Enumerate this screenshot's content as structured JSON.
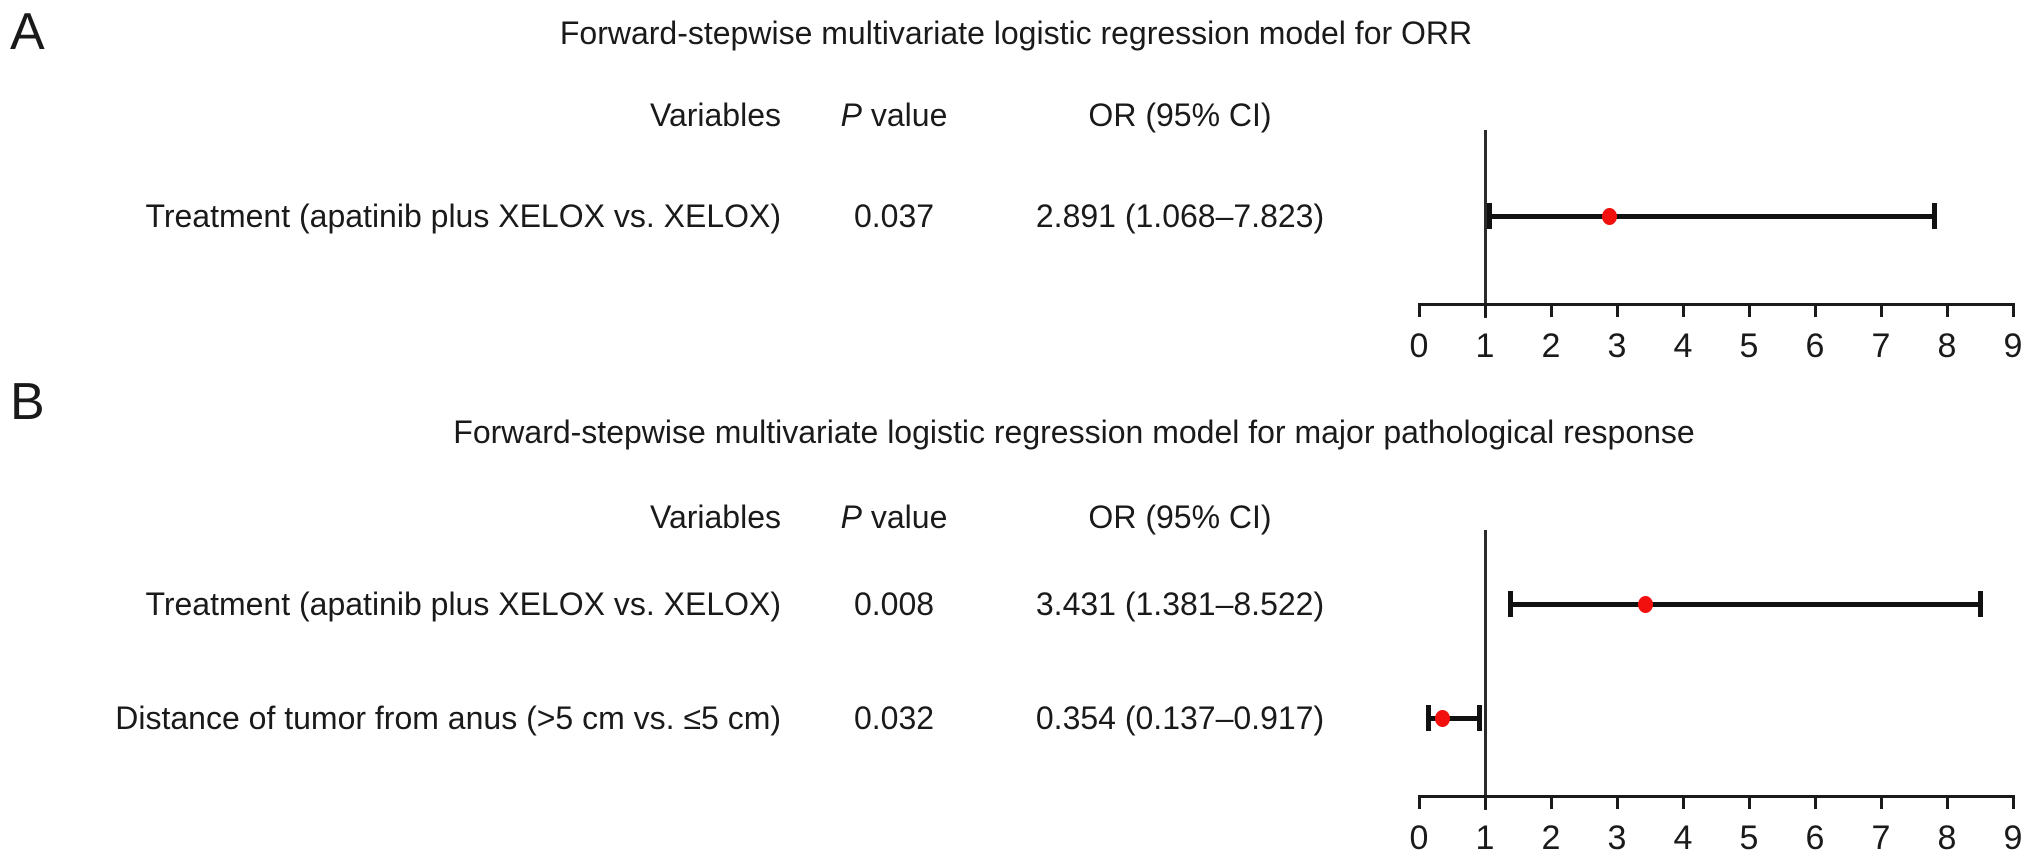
{
  "figure_labels": {
    "panel_a": "A",
    "panel_b": "B"
  },
  "columns": {
    "variables": "Variables",
    "p_italic": "P",
    "p_rest": " value",
    "or_ci": "OR (95% CI)"
  },
  "colors": {
    "background": "#ffffff",
    "text_black": "#1a1a1a",
    "line_black": "#111111",
    "reference_line": "#2b2b2b",
    "marker_red": "#f2100e"
  },
  "chart_data": [
    {
      "type": "forest",
      "panel": "A",
      "title": "Forward-stepwise multivariate logistic regression model for ORR",
      "column_headers": [
        "Variables",
        "P value",
        "OR (95% CI)"
      ],
      "xlim": [
        0,
        9
      ],
      "x_ticks": [
        "0",
        "1",
        "2",
        "3",
        "4",
        "5",
        "6",
        "7",
        "8",
        "9"
      ],
      "reference_line_x": 1,
      "grid": false,
      "rows": [
        {
          "variable": "Treatment (apatinib plus XELOX vs. XELOX)",
          "p_value": "0.037",
          "or_ci": "2.891 (1.068–7.823)",
          "or": 2.891,
          "ci_low": 1.068,
          "ci_high": 7.823
        }
      ]
    },
    {
      "type": "forest",
      "panel": "B",
      "title": "Forward-stepwise multivariate logistic regression model for major pathological response",
      "column_headers": [
        "Variables",
        "P value",
        "OR (95% CI)"
      ],
      "xlim": [
        0,
        9
      ],
      "x_ticks": [
        "0",
        "1",
        "2",
        "3",
        "4",
        "5",
        "6",
        "7",
        "8",
        "9"
      ],
      "reference_line_x": 1,
      "grid": false,
      "rows": [
        {
          "variable": "Treatment (apatinib plus XELOX vs. XELOX)",
          "p_value": "0.008",
          "or_ci": "3.431 (1.381–8.522)",
          "or": 3.431,
          "ci_low": 1.381,
          "ci_high": 8.522
        },
        {
          "variable": "Distance of tumor from anus (>5 cm vs. ≤5 cm)",
          "p_value": "0.032",
          "or_ci": "0.354 (0.137–0.917)",
          "or": 0.354,
          "ci_low": 0.137,
          "ci_high": 0.917
        }
      ]
    }
  ]
}
